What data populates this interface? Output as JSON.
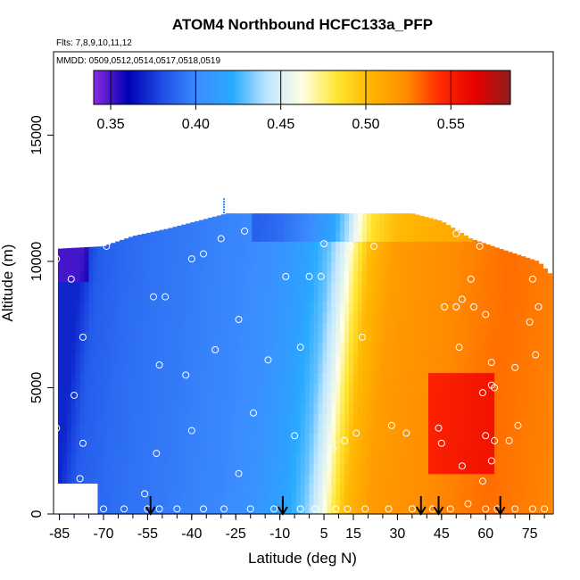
{
  "chart_data": {
    "type": "heatmap",
    "title": "ATOM4 Northbound HCFC133a_PFP",
    "subtitle_flights": "Flts: 7,8,9,10,11,12",
    "subtitle_dates": "MMDD: 0509,0512,0514,0517,0518,0519",
    "xlabel": "Latitude (deg N)",
    "ylabel": "Altitude (m)",
    "xlim": [
      -87,
      83
    ],
    "ylim": [
      0,
      18300
    ],
    "x_ticks": [
      -85,
      -70,
      -55,
      -40,
      -25,
      -10,
      5,
      15,
      30,
      45,
      60,
      75
    ],
    "y_ticks": [
      0,
      5000,
      10000,
      15000
    ],
    "colorbar": {
      "min": 0.34,
      "max": 0.585,
      "ticks": [
        0.35,
        0.4,
        0.45,
        0.5,
        0.55
      ],
      "tick_labels": [
        "0.35",
        "0.40",
        "0.45",
        "0.50",
        "0.55"
      ],
      "colors": [
        "#8a2be2",
        "#0000b4",
        "#1e50e6",
        "#3c8cff",
        "#28aaff",
        "#bfe6ff",
        "#ffffe6",
        "#ffe632",
        "#ffb400",
        "#ff8c00",
        "#ff2800",
        "#e60000",
        "#8c1e1e"
      ]
    },
    "field_columns": [
      {
        "lat": -86,
        "v": 0.37
      },
      {
        "lat": -80,
        "v": 0.385
      },
      {
        "lat": -70,
        "v": 0.39
      },
      {
        "lat": -60,
        "v": 0.393
      },
      {
        "lat": -50,
        "v": 0.395
      },
      {
        "lat": -40,
        "v": 0.398
      },
      {
        "lat": -30,
        "v": 0.4
      },
      {
        "lat": -20,
        "v": 0.405
      },
      {
        "lat": -10,
        "v": 0.415
      },
      {
        "lat": -2,
        "v": 0.43
      },
      {
        "lat": 4,
        "v": 0.455
      },
      {
        "lat": 8,
        "v": 0.48
      },
      {
        "lat": 12,
        "v": 0.5
      },
      {
        "lat": 20,
        "v": 0.515
      },
      {
        "lat": 30,
        "v": 0.52
      },
      {
        "lat": 45,
        "v": 0.525
      },
      {
        "lat": 60,
        "v": 0.53
      },
      {
        "lat": 82,
        "v": 0.525
      }
    ],
    "field_top_altitude": [
      {
        "lat": -86,
        "alt": 10500
      },
      {
        "lat": -70,
        "alt": 10600
      },
      {
        "lat": -60,
        "alt": 11000
      },
      {
        "lat": -48,
        "alt": 11300
      },
      {
        "lat": -28,
        "alt": 11900
      },
      {
        "lat": -10,
        "alt": 11900
      },
      {
        "lat": 15,
        "alt": 11900
      },
      {
        "lat": 35,
        "alt": 11900
      },
      {
        "lat": 45,
        "alt": 11600
      },
      {
        "lat": 55,
        "alt": 10900
      },
      {
        "lat": 65,
        "alt": 10500
      },
      {
        "lat": 78,
        "alt": 10000
      },
      {
        "lat": 82,
        "alt": 9500
      }
    ],
    "samples": [
      {
        "lat": -86,
        "alt": 10100
      },
      {
        "lat": -81,
        "alt": 9300
      },
      {
        "lat": -77,
        "alt": 7000
      },
      {
        "lat": -80,
        "alt": 4700
      },
      {
        "lat": -77,
        "alt": 2800
      },
      {
        "lat": -78,
        "alt": 1400
      },
      {
        "lat": -86,
        "alt": 3400
      },
      {
        "lat": -69,
        "alt": 10600
      },
      {
        "lat": -53,
        "alt": 8600
      },
      {
        "lat": -49,
        "alt": 8600
      },
      {
        "lat": -51,
        "alt": 5900
      },
      {
        "lat": -52,
        "alt": 2400
      },
      {
        "lat": -42,
        "alt": 5500
      },
      {
        "lat": -40,
        "alt": 3300
      },
      {
        "lat": -40,
        "alt": 10100
      },
      {
        "lat": -36,
        "alt": 10300
      },
      {
        "lat": -32,
        "alt": 6500
      },
      {
        "lat": -30,
        "alt": 10900
      },
      {
        "lat": -24,
        "alt": 7700
      },
      {
        "lat": -19,
        "alt": 4000
      },
      {
        "lat": -24,
        "alt": 1600
      },
      {
        "lat": -22,
        "alt": 11200
      },
      {
        "lat": -14,
        "alt": 6100
      },
      {
        "lat": -8,
        "alt": 9400
      },
      {
        "lat": -3,
        "alt": 6600
      },
      {
        "lat": -5,
        "alt": 3100
      },
      {
        "lat": 0,
        "alt": 9400
      },
      {
        "lat": 4,
        "alt": 9400
      },
      {
        "lat": 5,
        "alt": 10700
      },
      {
        "lat": 8,
        "alt": 2600
      },
      {
        "lat": 12,
        "alt": 2900
      },
      {
        "lat": 16,
        "alt": 3200
      },
      {
        "lat": 18,
        "alt": 7000
      },
      {
        "lat": 14,
        "alt": 10600
      },
      {
        "lat": 22,
        "alt": 10600
      },
      {
        "lat": 28,
        "alt": 3500
      },
      {
        "lat": 33,
        "alt": 3200
      },
      {
        "lat": 44,
        "alt": 3400
      },
      {
        "lat": 45,
        "alt": 2800
      },
      {
        "lat": 46,
        "alt": 8200
      },
      {
        "lat": 52,
        "alt": 8500
      },
      {
        "lat": 50,
        "alt": 8200
      },
      {
        "lat": 56,
        "alt": 8200
      },
      {
        "lat": 58,
        "alt": 10600
      },
      {
        "lat": 51,
        "alt": 6600
      },
      {
        "lat": 55,
        "alt": 9300
      },
      {
        "lat": 60,
        "alt": 7900
      },
      {
        "lat": 62,
        "alt": 6000
      },
      {
        "lat": 62,
        "alt": 5100
      },
      {
        "lat": 63,
        "alt": 5000
      },
      {
        "lat": 59,
        "alt": 4800
      },
      {
        "lat": 60,
        "alt": 3100
      },
      {
        "lat": 63,
        "alt": 2900
      },
      {
        "lat": 68,
        "alt": 2900
      },
      {
        "lat": 70,
        "alt": 5800
      },
      {
        "lat": 71,
        "alt": 3500
      },
      {
        "lat": 75,
        "alt": 7600
      },
      {
        "lat": 76,
        "alt": 9300
      },
      {
        "lat": 78,
        "alt": 8200
      },
      {
        "lat": 77,
        "alt": 6300
      },
      {
        "lat": 67,
        "alt": 10800
      },
      {
        "lat": 75,
        "alt": 10600
      },
      {
        "lat": 52,
        "alt": 1900
      },
      {
        "lat": 53,
        "alt": 11300
      },
      {
        "lat": 50,
        "alt": 11100
      },
      {
        "lat": 62,
        "alt": 2100
      },
      {
        "lat": 59,
        "alt": 1300
      },
      {
        "lat": -56,
        "alt": 800
      },
      {
        "lat": -79,
        "alt": 200
      },
      {
        "lat": -70,
        "alt": 200
      },
      {
        "lat": -63,
        "alt": 200
      },
      {
        "lat": -55,
        "alt": 200
      },
      {
        "lat": -51,
        "alt": 200
      },
      {
        "lat": -45,
        "alt": 200
      },
      {
        "lat": -36,
        "alt": 200
      },
      {
        "lat": -29,
        "alt": 200
      },
      {
        "lat": -20,
        "alt": 200
      },
      {
        "lat": -12,
        "alt": 200
      },
      {
        "lat": -3,
        "alt": 200
      },
      {
        "lat": 2,
        "alt": 200
      },
      {
        "lat": 9,
        "alt": 200
      },
      {
        "lat": 13,
        "alt": 200
      },
      {
        "lat": 19,
        "alt": 200
      },
      {
        "lat": 27,
        "alt": 200
      },
      {
        "lat": 35,
        "alt": 200
      },
      {
        "lat": 42,
        "alt": 200
      },
      {
        "lat": 48,
        "alt": 200
      },
      {
        "lat": 54,
        "alt": 400
      },
      {
        "lat": 60,
        "alt": 200
      },
      {
        "lat": 64,
        "alt": 200
      },
      {
        "lat": 70,
        "alt": 200
      },
      {
        "lat": 76,
        "alt": 200
      },
      {
        "lat": 80,
        "alt": 200
      }
    ],
    "top_marker_lat": -29,
    "arrows_lat": [
      -54,
      -9,
      38,
      44,
      65
    ]
  }
}
